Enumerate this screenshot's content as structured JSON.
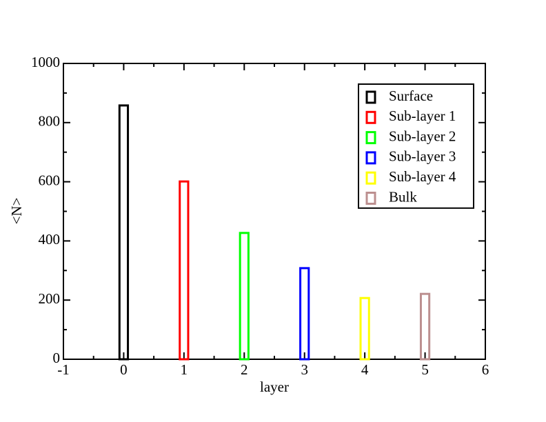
{
  "chart_data": {
    "type": "bar",
    "xlabel": "layer",
    "ylabel": "<N>",
    "series": [
      {
        "name": "Surface",
        "color": "#000000",
        "x": [
          0
        ],
        "values": [
          858
        ]
      },
      {
        "name": "Sub-layer 1",
        "color": "#ff0000",
        "x": [
          1
        ],
        "values": [
          601
        ]
      },
      {
        "name": "Sub-layer 2",
        "color": "#00ff00",
        "x": [
          2
        ],
        "values": [
          427
        ]
      },
      {
        "name": "Sub-layer 3",
        "color": "#0000ff",
        "x": [
          3
        ],
        "values": [
          308
        ]
      },
      {
        "name": "Sub-layer 4",
        "color": "#ffff00",
        "x": [
          4
        ],
        "values": [
          207
        ]
      },
      {
        "name": "Bulk",
        "color": "#bc8f8f",
        "x": [
          5
        ],
        "values": [
          221
        ]
      }
    ],
    "xlim": [
      -1,
      6
    ],
    "xticks": [
      -1,
      0,
      1,
      2,
      3,
      4,
      5,
      6
    ],
    "xminorticks": [
      -0.5,
      0.5,
      1.5,
      2.5,
      3.5,
      4.5,
      5.5
    ],
    "ylim": [
      0,
      1000
    ],
    "yticks": [
      0,
      200,
      400,
      600,
      800,
      1000
    ],
    "yminorticks": [
      100,
      300,
      500,
      700,
      900
    ],
    "legend": "upper right"
  }
}
